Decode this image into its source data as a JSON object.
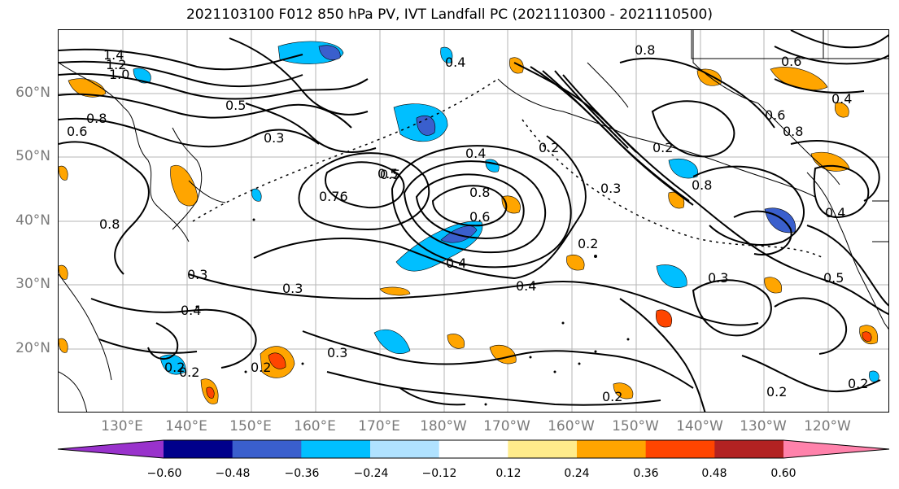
{
  "title": "2021103100 F012 850 hPa PV, IVT Landfall PC (2021110300 - 2021110500)",
  "lat_labels": [
    "60°N",
    "50°N",
    "40°N",
    "30°N",
    "20°N"
  ],
  "lon_labels": [
    "130°E",
    "140°E",
    "150°E",
    "160°E",
    "170°E",
    "180°W",
    "170°W",
    "160°W",
    "150°W",
    "140°W",
    "130°W",
    "120°W"
  ],
  "colorbar": {
    "ticks": [
      "−0.60",
      "−0.48",
      "−0.36",
      "−0.24",
      "−0.12",
      "0.12",
      "0.24",
      "0.36",
      "0.48",
      "0.60"
    ],
    "colors": [
      "#9932cc",
      "#00008b",
      "#3a5fcd",
      "#00bfff",
      "#b0e2ff",
      "#ffffff",
      "#ffec8b",
      "#ffa500",
      "#ff4500",
      "#b22222",
      "#ff82ab"
    ]
  },
  "contour_labels": [
    "1.4",
    "1.2",
    "1.0",
    "0.8",
    "0.6",
    "0.5",
    "0.4",
    "0.3",
    "0.2",
    "0.76",
    "0.8",
    "0.6",
    "0.5",
    "0.4",
    "0.3",
    "0.2",
    "0.8",
    "0.6",
    "0.5",
    "0.4",
    "0.3",
    "0.2"
  ]
}
